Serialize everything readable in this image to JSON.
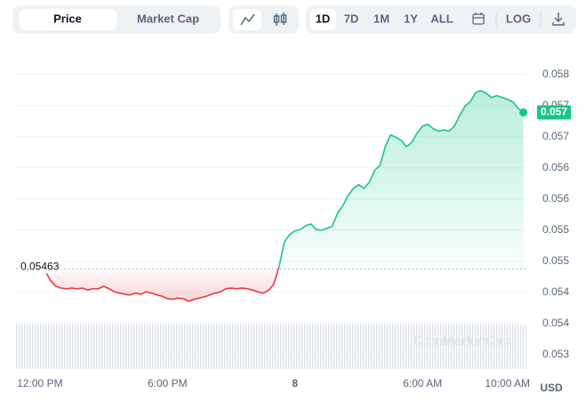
{
  "toolbar": {
    "tabs": [
      "Price",
      "Market Cap"
    ],
    "ranges": [
      "1D",
      "7D",
      "1M",
      "1Y",
      "ALL"
    ],
    "log": "LOG"
  },
  "chart_data": {
    "type": "line",
    "categories": [
      null,
      null,
      null,
      null,
      "12:00 PM",
      null,
      null,
      null,
      null,
      null,
      null,
      null,
      null,
      null,
      null,
      null,
      null,
      null,
      null,
      null,
      null,
      null,
      null,
      null,
      null,
      null,
      null,
      null,
      "6:00 PM",
      null,
      null,
      null,
      null,
      null,
      null,
      null,
      null,
      null,
      null,
      null,
      null,
      null,
      null,
      null,
      null,
      null,
      null,
      null,
      null,
      null,
      null,
      null,
      "8",
      null,
      null,
      null,
      null,
      null,
      null,
      null,
      null,
      null,
      null,
      null,
      null,
      null,
      null,
      null,
      null,
      null,
      null,
      null,
      null,
      null,
      null,
      null,
      "6:00 AM",
      null,
      null,
      null,
      null,
      null,
      null,
      null,
      null,
      null,
      null,
      null,
      null,
      null,
      null,
      null,
      "10:00 AM",
      null,
      null,
      null
    ],
    "values": [
      0.05471,
      0.05469,
      0.05469,
      0.05468,
      0.05466,
      0.05459,
      0.05444,
      0.05435,
      0.05432,
      0.05431,
      0.05432,
      0.05431,
      0.05432,
      0.05429,
      0.05431,
      0.05431,
      0.05435,
      0.05431,
      0.05426,
      0.05424,
      0.05422,
      0.05421,
      0.05424,
      0.05422,
      0.05426,
      0.05424,
      0.05421,
      0.05419,
      0.05415,
      0.05414,
      0.05416,
      0.05415,
      0.05411,
      0.05414,
      0.05416,
      0.05418,
      0.05421,
      0.05424,
      0.05426,
      0.05431,
      0.05432,
      0.05431,
      0.05432,
      0.05431,
      0.05429,
      0.05426,
      0.05424,
      0.05428,
      0.05438,
      0.05466,
      0.05506,
      0.05518,
      0.05524,
      0.05526,
      0.05532,
      0.05535,
      0.05526,
      0.05525,
      0.05528,
      0.05531,
      0.05552,
      0.05564,
      0.05581,
      0.05592,
      0.05598,
      0.05592,
      0.05602,
      0.05621,
      0.05629,
      0.05659,
      0.05678,
      0.05674,
      0.05669,
      0.05659,
      0.05666,
      0.05681,
      0.05692,
      0.05695,
      0.05688,
      0.05684,
      0.05686,
      0.05684,
      0.05692,
      0.05709,
      0.05724,
      0.05731,
      0.05746,
      0.05749,
      0.05745,
      0.05738,
      0.05741,
      0.05738,
      0.05735,
      0.05731,
      0.05721,
      0.05714
    ],
    "up_color": "#16c784",
    "down_color": "#ea3943",
    "reference_value": 0.05463,
    "last_label": "0.057",
    "ylim": [
      0.05302,
      0.05806
    ],
    "yticks": [
      {
        "value": 0.05775,
        "label": "0.058"
      },
      {
        "value": 0.05725,
        "label": "0.057"
      },
      {
        "value": 0.05675,
        "label": "0.057"
      },
      {
        "value": 0.05625,
        "label": "0.056"
      },
      {
        "value": 0.05575,
        "label": "0.056"
      },
      {
        "value": 0.05525,
        "label": "0.055"
      },
      {
        "value": 0.05475,
        "label": "0.055"
      },
      {
        "value": 0.05425,
        "label": "0.054"
      },
      {
        "value": 0.05375,
        "label": "0.054"
      },
      {
        "value": 0.05325,
        "label": "0.053"
      }
    ],
    "y_unit": "USD",
    "watermark": "CoinMarketCap",
    "grid": true
  }
}
